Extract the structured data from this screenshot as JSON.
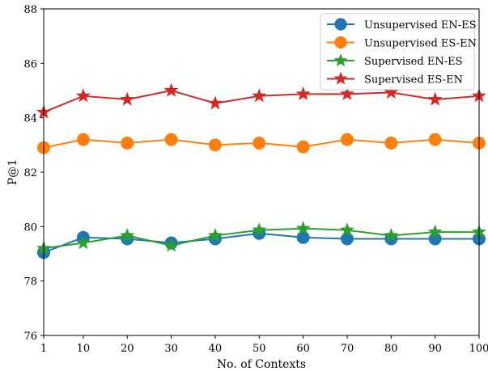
{
  "chart_data": {
    "type": "line",
    "xlabel": "No. of Contexts",
    "ylabel": "P@1",
    "x": [
      1,
      10,
      20,
      30,
      40,
      50,
      60,
      70,
      80,
      90,
      100
    ],
    "xlim": [
      1,
      100
    ],
    "ylim": [
      76,
      88
    ],
    "xticks": [
      1,
      10,
      20,
      30,
      40,
      50,
      60,
      70,
      80,
      90,
      100
    ],
    "yticks": [
      76,
      78,
      80,
      82,
      84,
      86,
      88
    ],
    "grid": false,
    "legend_position": "top-right",
    "series": [
      {
        "name": "Unsupervised EN-ES",
        "marker": "circle",
        "color": "#1f77b4",
        "values": [
          79.05,
          79.6,
          79.55,
          79.4,
          79.55,
          79.75,
          79.6,
          79.55,
          79.55,
          79.55,
          79.55
        ]
      },
      {
        "name": "Unsupervised ES-EN",
        "marker": "circle",
        "color": "#ff7f0e",
        "values": [
          82.9,
          83.2,
          83.07,
          83.2,
          83.0,
          83.07,
          82.93,
          83.2,
          83.07,
          83.2,
          83.07
        ]
      },
      {
        "name": "Supervised EN-ES",
        "marker": "star",
        "color": "#2ca02c",
        "values": [
          79.2,
          79.4,
          79.67,
          79.3,
          79.67,
          79.87,
          79.93,
          79.87,
          79.67,
          79.8,
          79.8
        ]
      },
      {
        "name": "Supervised ES-EN",
        "marker": "star",
        "color": "#d62728",
        "values": [
          84.2,
          84.8,
          84.67,
          85.0,
          84.53,
          84.8,
          84.87,
          84.87,
          84.93,
          84.67,
          84.8
        ]
      }
    ]
  }
}
